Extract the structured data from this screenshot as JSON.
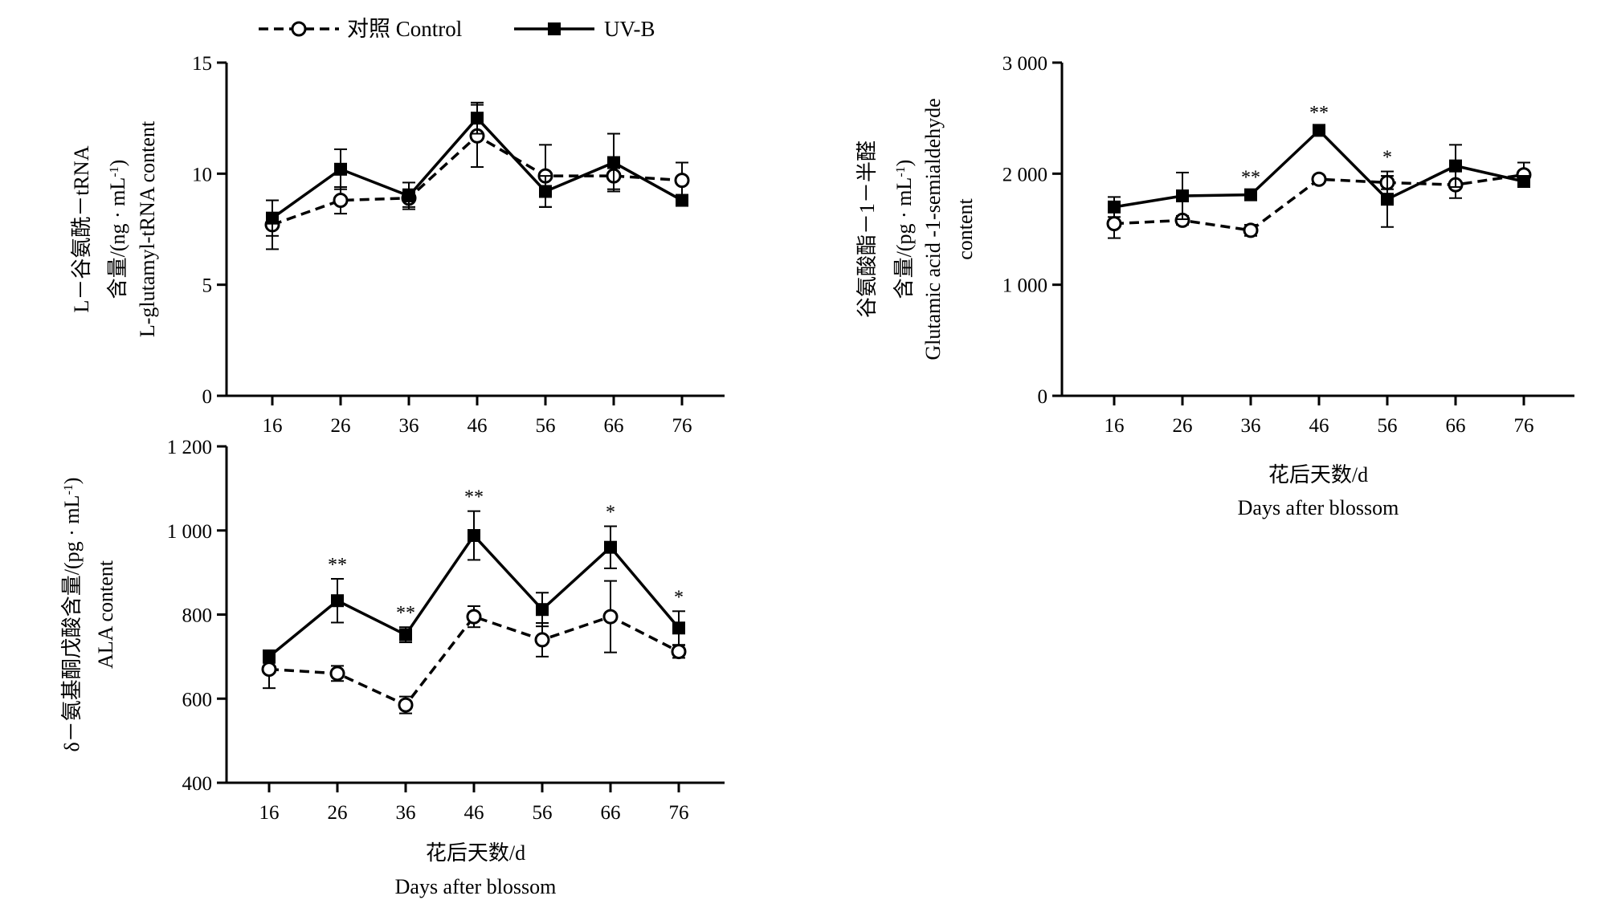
{
  "legend": {
    "control_label": "对照 Control",
    "uvb_label": "UV-B"
  },
  "colors": {
    "ink": "#000000",
    "background": "#ffffff"
  },
  "chart_data": [
    {
      "id": "glutamyl",
      "type": "line",
      "ylabel_lines": [
        "L－谷氨酰－tRNA",
        "含量/(ng · mL-1)",
        "L-glutamyl-tRNA content"
      ],
      "xlabel_lines": [],
      "categories": [
        "16",
        "26",
        "36",
        "46",
        "56",
        "66",
        "76"
      ],
      "ylim": [
        0,
        15
      ],
      "yticks": [
        0,
        5,
        10,
        15
      ],
      "ytick_labels": [
        "0",
        "5",
        "10",
        "15"
      ],
      "series": [
        {
          "name": "对照 Control",
          "values": [
            7.7,
            8.8,
            8.9,
            11.7,
            9.9,
            9.9,
            9.7
          ],
          "errors": [
            1.1,
            0.6,
            0.4,
            1.4,
            1.4,
            0.6,
            0.8
          ]
        },
        {
          "name": "UV-B",
          "values": [
            8.0,
            10.2,
            9.0,
            12.5,
            9.2,
            10.5,
            8.8
          ],
          "errors": [
            0.8,
            0.9,
            0.6,
            0.7,
            0.7,
            1.3,
            0.2
          ]
        }
      ],
      "significance": [
        "",
        "",
        "",
        "",
        "",
        "",
        ""
      ]
    },
    {
      "id": "gsa",
      "type": "line",
      "ylabel_lines": [
        "谷氨酸酯－1－半醛",
        "含量/(pg · mL-1)",
        "Glutamic acid -1-semialdehyde",
        "content"
      ],
      "xlabel_lines": [
        "花后天数/d",
        "Days after blossom"
      ],
      "categories": [
        "16",
        "26",
        "36",
        "46",
        "56",
        "66",
        "76"
      ],
      "ylim": [
        0,
        3000
      ],
      "yticks": [
        0,
        1000,
        2000,
        3000
      ],
      "ytick_labels": [
        "0",
        "1 000",
        "2 000",
        "3 000"
      ],
      "series": [
        {
          "name": "对照 Control",
          "values": [
            1550,
            1580,
            1490,
            1950,
            1920,
            1900,
            1990
          ],
          "errors": [
            130,
            40,
            50,
            30,
            60,
            120,
            110
          ]
        },
        {
          "name": "UV-B",
          "values": [
            1700,
            1800,
            1810,
            2390,
            1770,
            2070,
            1930
          ],
          "errors": [
            90,
            210,
            30,
            30,
            250,
            190,
            20
          ]
        }
      ],
      "significance": [
        "",
        "",
        "**",
        "**",
        "*",
        "",
        ""
      ]
    },
    {
      "id": "ala",
      "type": "line",
      "ylabel_lines": [
        "δ－氨基酮戊酸含量/(pg · mL-1)",
        "ALA content"
      ],
      "xlabel_lines": [
        "花后天数/d",
        "Days after blossom"
      ],
      "categories": [
        "16",
        "26",
        "36",
        "46",
        "56",
        "66",
        "76"
      ],
      "ylim": [
        400,
        1200
      ],
      "yticks": [
        400,
        600,
        800,
        1000,
        1200
      ],
      "ytick_labels": [
        "400",
        "600",
        "800",
        "1 000",
        "1 200"
      ],
      "series": [
        {
          "name": "对照 Control",
          "values": [
            670,
            660,
            585,
            795,
            740,
            795,
            712
          ],
          "errors": [
            45,
            18,
            20,
            25,
            40,
            85,
            15
          ]
        },
        {
          "name": "UV-B",
          "values": [
            700,
            833,
            752,
            988,
            812,
            960,
            768
          ],
          "errors": [
            15,
            52,
            18,
            58,
            40,
            50,
            40
          ]
        }
      ],
      "significance": [
        "",
        "**",
        "**",
        "**",
        "",
        "*",
        "*"
      ]
    }
  ]
}
